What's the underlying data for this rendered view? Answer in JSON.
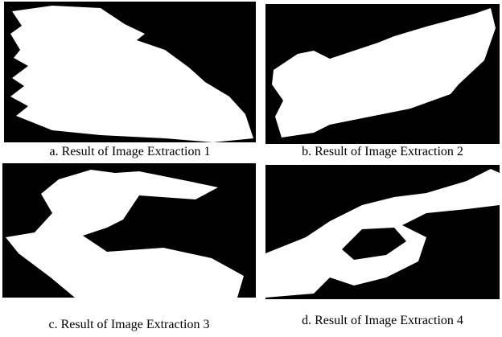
{
  "panels": [
    {
      "caption": "a. Result of Image Extraction 1"
    },
    {
      "caption": "b. Result of Image Extraction 2"
    },
    {
      "caption": "c. Result of Image Extraction 3"
    },
    {
      "caption": "d. Result of Image Extraction 4"
    }
  ]
}
